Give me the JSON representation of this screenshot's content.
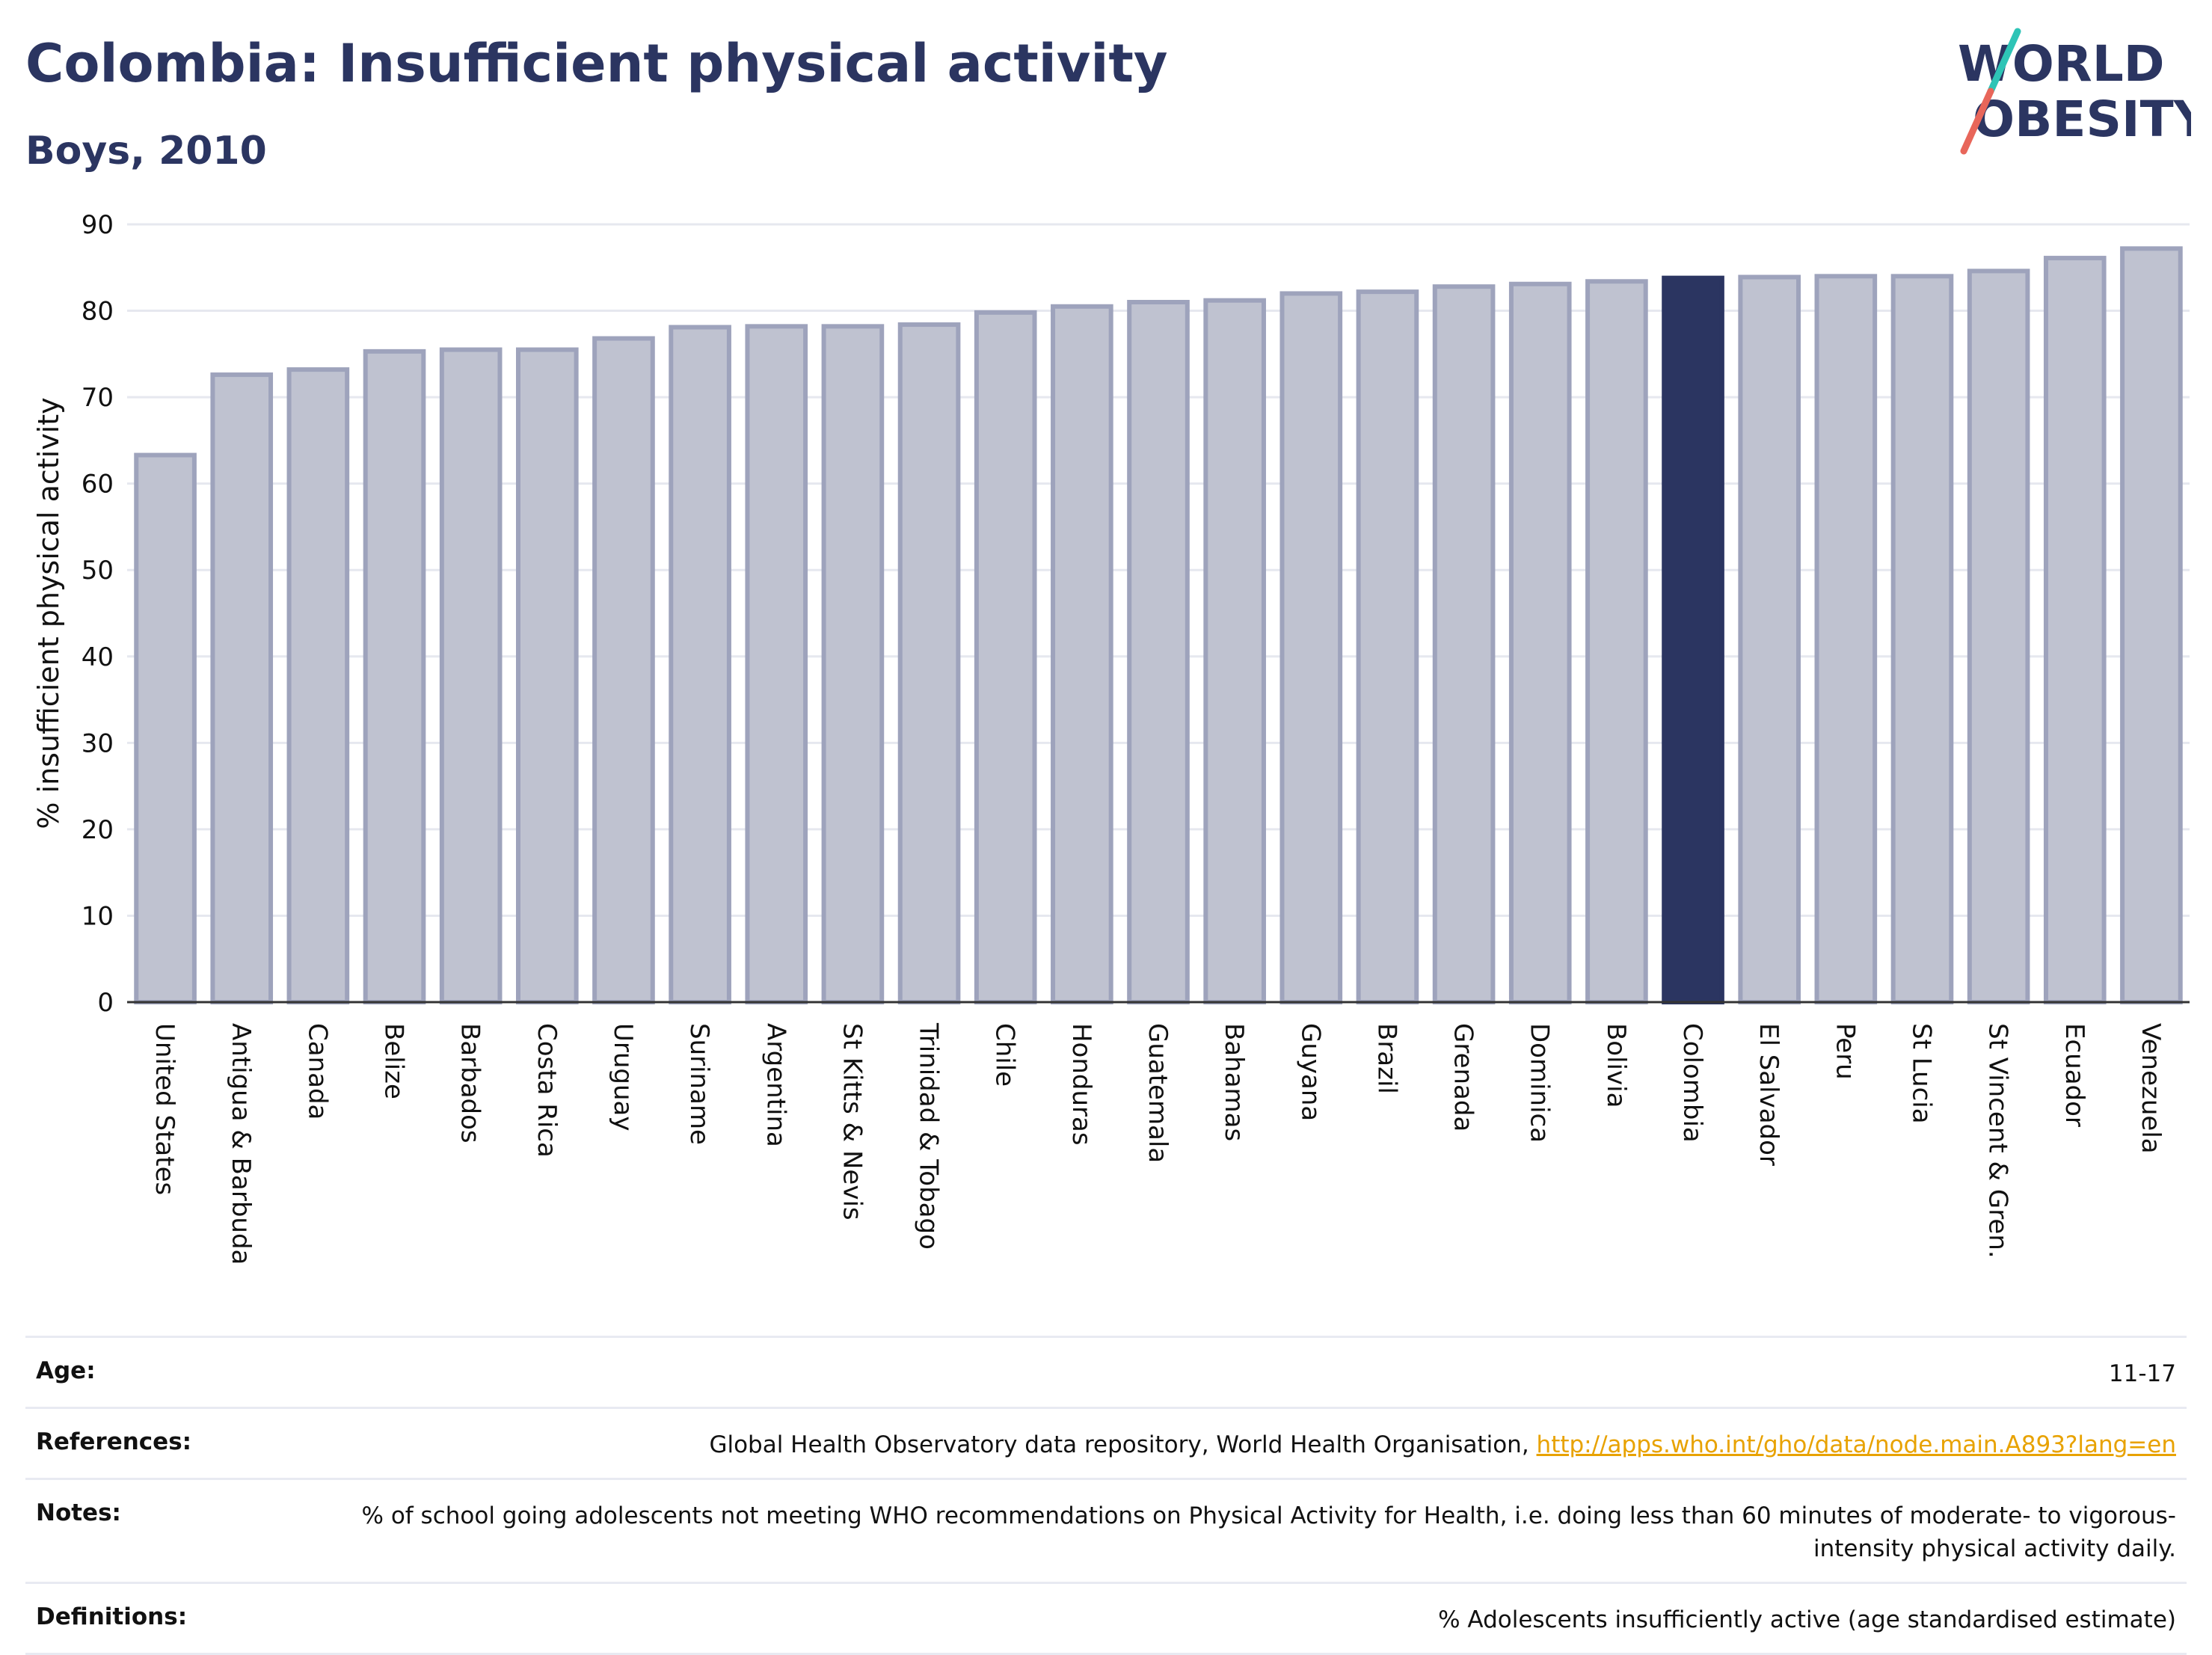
{
  "header": {
    "title": "Colombia: Insufficient physical activity",
    "subtitle": "Boys, 2010"
  },
  "logo": {
    "line1": "WORLD",
    "line2": "OBESITY",
    "colors": {
      "text": "#2b3561",
      "slash_top": "#2ec4b6",
      "slash_bottom": "#e8665a"
    }
  },
  "chart_data": {
    "type": "bar",
    "ylabel": "% insufficient physical activity",
    "xlabel": "",
    "ylim": [
      0,
      90
    ],
    "yticks": [
      0,
      10,
      20,
      30,
      40,
      50,
      60,
      70,
      80,
      90
    ],
    "grid": true,
    "highlight": "Colombia",
    "colors": {
      "bar": "#bfc2d0",
      "bar_edge": "#9ea3bc",
      "highlight": "#2b3561",
      "grid": "#e6e8ef",
      "axis": "#333333"
    },
    "categories": [
      "United States",
      "Antigua & Barbuda",
      "Canada",
      "Belize",
      "Barbados",
      "Costa Rica",
      "Uruguay",
      "Suriname",
      "Argentina",
      "St Kitts & Nevis",
      "Trinidad & Tobago",
      "Chile",
      "Honduras",
      "Guatemala",
      "Bahamas",
      "Guyana",
      "Brazil",
      "Grenada",
      "Dominica",
      "Bolivia",
      "Colombia",
      "El Salvador",
      "Peru",
      "St Lucia",
      "St Vincent & Gren.",
      "Ecuador",
      "Venezuela"
    ],
    "values": [
      63.3,
      72.6,
      73.2,
      75.3,
      75.5,
      75.5,
      76.8,
      78.1,
      78.2,
      78.2,
      78.4,
      79.8,
      80.5,
      81.0,
      81.2,
      82.0,
      82.2,
      82.8,
      83.1,
      83.4,
      83.8,
      83.9,
      84.0,
      84.0,
      84.6,
      86.1,
      87.2
    ]
  },
  "meta": {
    "age_label": "Age:",
    "age_value": "11-17",
    "references_label": "References:",
    "references_text": "Global Health Observatory data repository, World Health Organisation, ",
    "references_link": "http://apps.who.int/gho/data/node.main.A893?lang=en",
    "notes_label": "Notes:",
    "notes_value": "% of school going adolescents not meeting WHO recommendations on Physical Activity for Health, i.e. doing less than 60 minutes of moderate- to vigorous-intensity physical activity daily.",
    "definitions_label": "Definitions:",
    "definitions_value": "% Adolescents insufficiently active (age standardised estimate)"
  }
}
